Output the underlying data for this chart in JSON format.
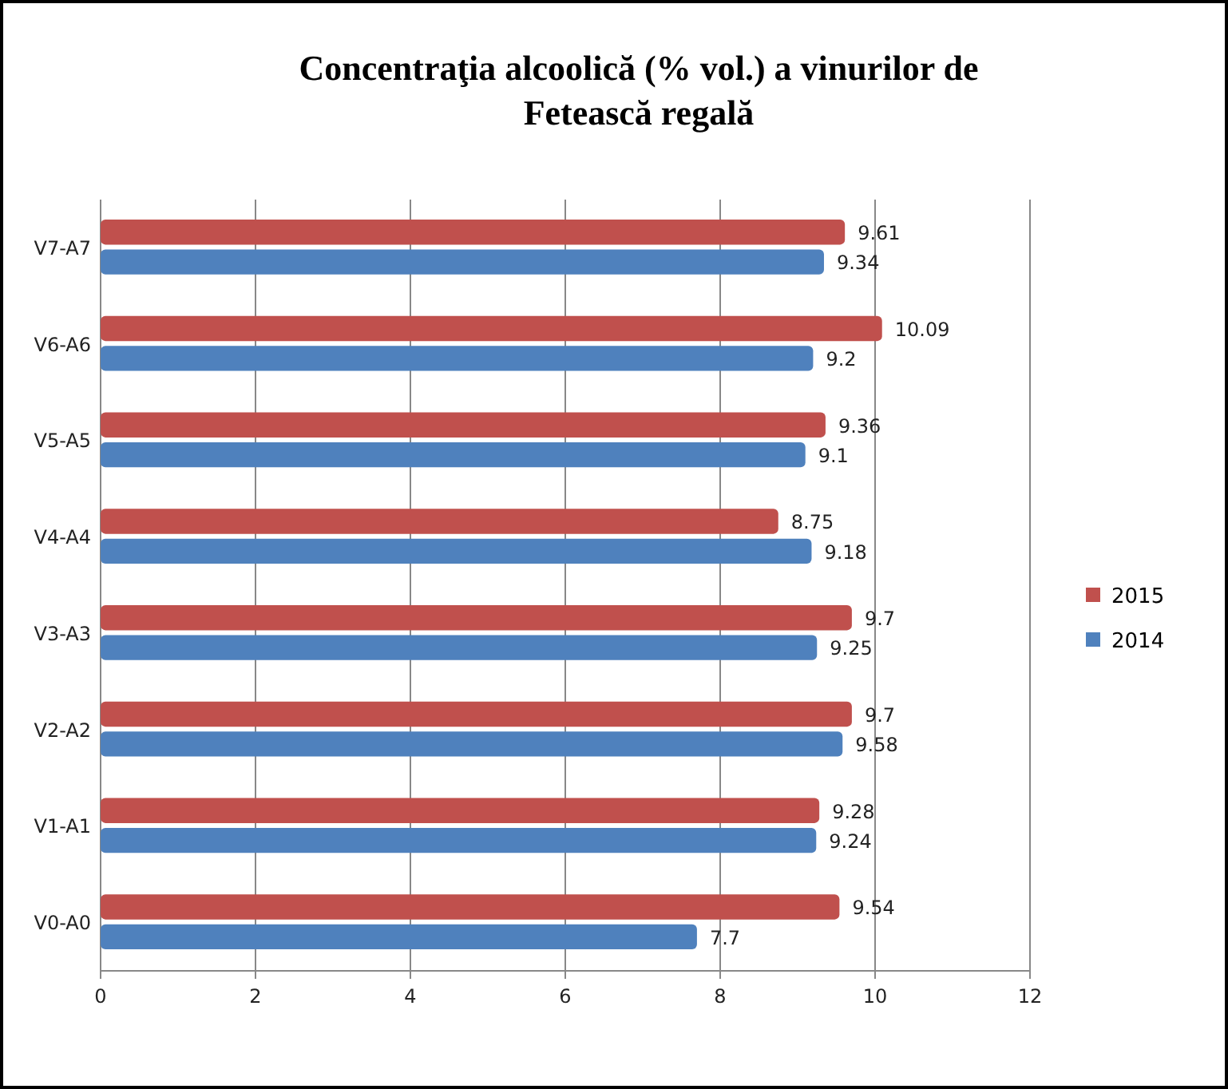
{
  "chart_data": {
    "type": "bar",
    "orientation": "horizontal",
    "title": "Concentraţia alcoolică (% vol.) a vinurilor de Fetească regală",
    "categories": [
      "V7-A7",
      "V6-A6",
      "V5-A5",
      "V4-A4",
      "V3-A3",
      "V2-A2",
      "V1-A1",
      "V0-A0"
    ],
    "series": [
      {
        "name": "2015",
        "color": "#c0504d",
        "values": [
          9.61,
          10.09,
          9.36,
          8.75,
          9.7,
          9.7,
          9.28,
          9.54
        ]
      },
      {
        "name": "2014",
        "color": "#4f81bd",
        "values": [
          9.34,
          9.2,
          9.1,
          9.18,
          9.25,
          9.58,
          9.24,
          7.7
        ]
      }
    ],
    "xlim": [
      0,
      12
    ],
    "xticks": [
      0,
      2,
      4,
      6,
      8,
      10,
      12
    ],
    "grid": "x",
    "legend": "right",
    "data_labels": true
  }
}
